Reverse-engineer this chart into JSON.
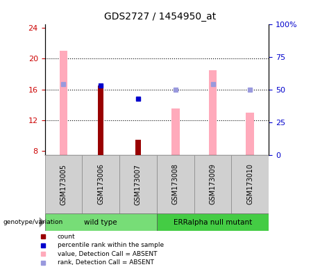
{
  "title": "GDS2727 / 1454950_at",
  "samples": [
    "GSM173005",
    "GSM173006",
    "GSM173007",
    "GSM173008",
    "GSM173009",
    "GSM173010"
  ],
  "ylim_left": [
    7.5,
    24.5
  ],
  "ylim_right": [
    0,
    100
  ],
  "yticks_left": [
    8,
    12,
    16,
    20,
    24
  ],
  "yticks_right": [
    0,
    25,
    50,
    75,
    100
  ],
  "ytick_labels_right": [
    "0",
    "25",
    "50",
    "75",
    "100%"
  ],
  "pink_bar_values": [
    21.0,
    0,
    0,
    13.5,
    18.5,
    13.0
  ],
  "pink_bar_color": "#ffaabb",
  "lightblue_sq_values": [
    16.7,
    0,
    0,
    16.0,
    16.7,
    16.0
  ],
  "lightblue_sq_color": "#9999dd",
  "darkred_bar_values": [
    0,
    16.5,
    9.5,
    0,
    0,
    0
  ],
  "darkred_bar_color": "#990000",
  "blue_sq_values": [
    0,
    16.5,
    14.8,
    0,
    0,
    0
  ],
  "blue_sq_color": "#0000cc",
  "pink_bar_width": 0.22,
  "darkred_bar_width": 0.14,
  "tick_label_color_left": "#cc0000",
  "tick_label_color_right": "#0000cc",
  "grid_dotted_at": [
    12,
    16,
    20
  ],
  "legend_items": [
    {
      "label": "count",
      "color": "#990000"
    },
    {
      "label": "percentile rank within the sample",
      "color": "#0000cc"
    },
    {
      "label": "value, Detection Call = ABSENT",
      "color": "#ffaabb"
    },
    {
      "label": "rank, Detection Call = ABSENT",
      "color": "#9999dd"
    }
  ]
}
